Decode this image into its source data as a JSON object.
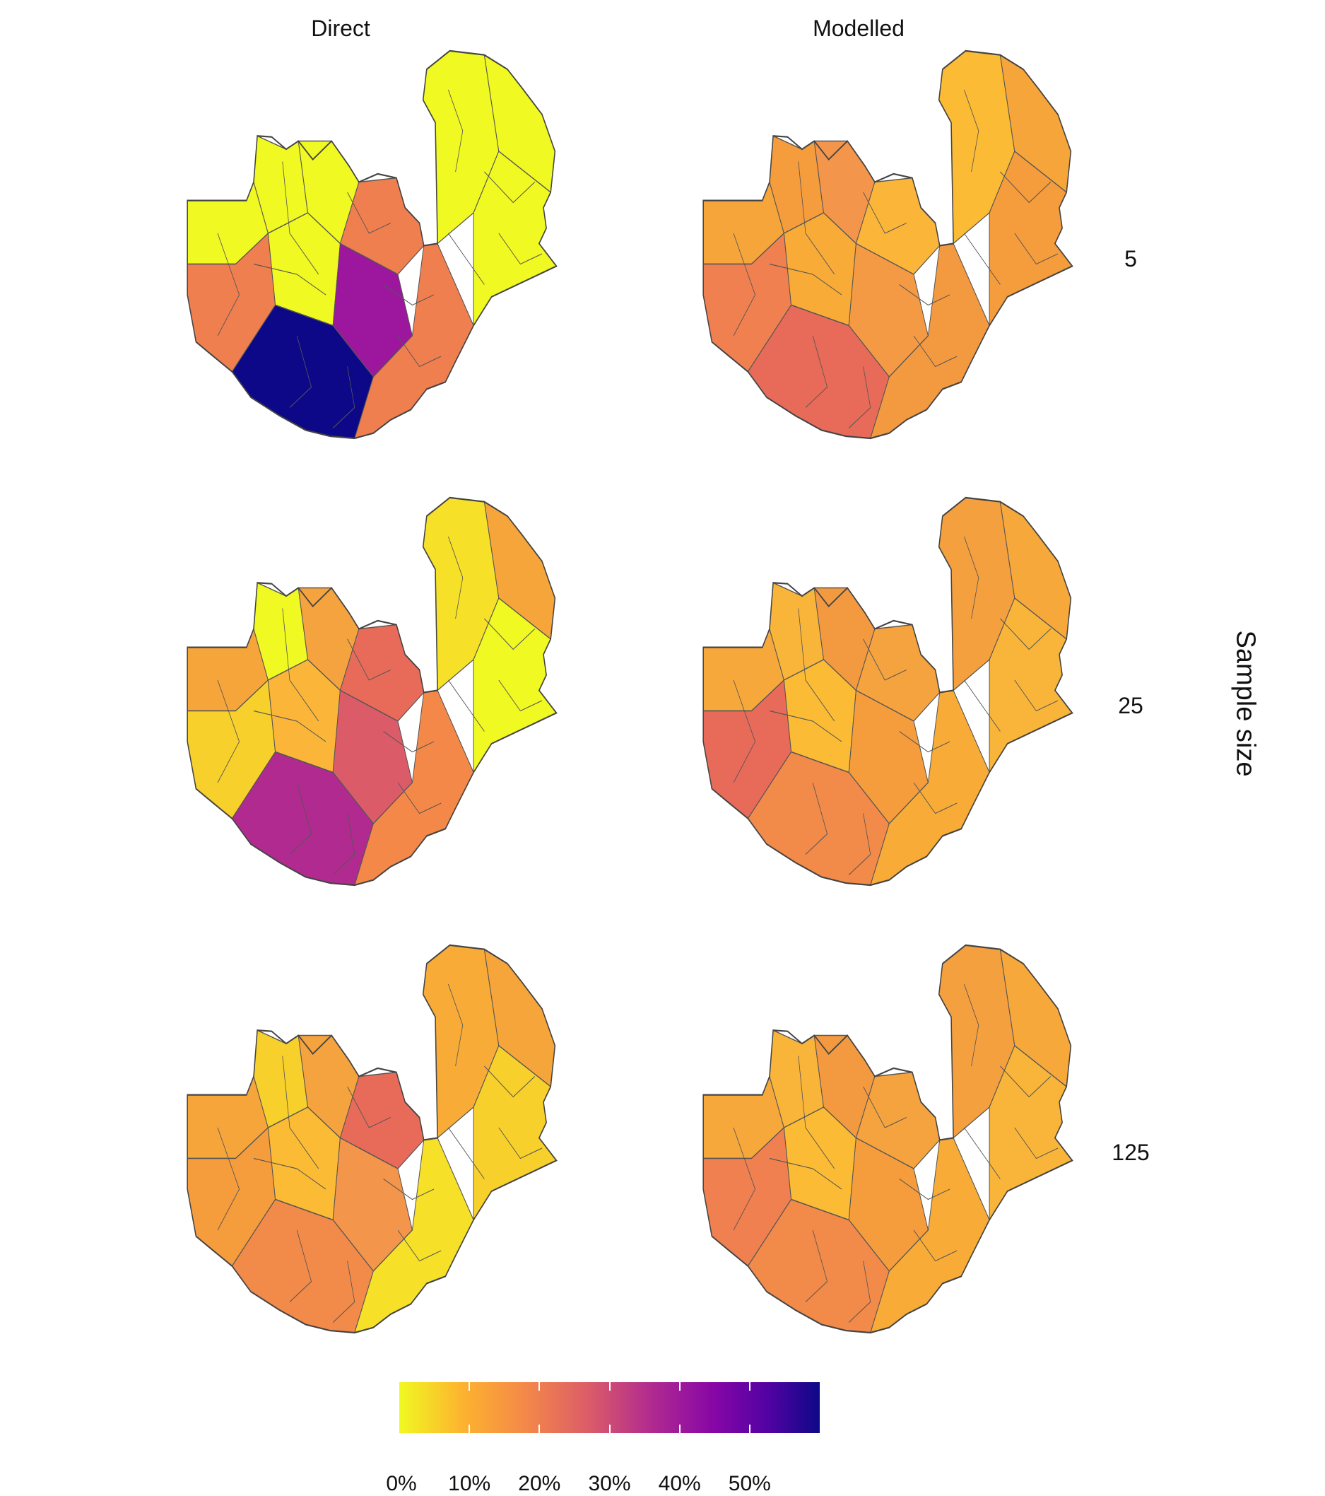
{
  "columns": [
    "Direct",
    "Modelled"
  ],
  "strip_title": "Sample size",
  "rows": [
    "5",
    "25",
    "125"
  ],
  "legend": {
    "labels": [
      "0%",
      "10%",
      "20%",
      "30%",
      "40%",
      "50%"
    ],
    "values": [
      0,
      10,
      20,
      30,
      40,
      50
    ],
    "max": 60,
    "colors": [
      "#f0f921",
      "#fdb32f",
      "#f48849",
      "#db5c68",
      "#b12a90",
      "#8606a6",
      "#0d0887"
    ]
  },
  "panels": [
    {
      "method": "Direct",
      "sample_size": "5",
      "palette": [
        "#f0f921",
        "#f0f921",
        "#f0f921",
        "#f07f50",
        "#f07f50",
        "#f0f921",
        "#9c179e",
        "#0d0887",
        "#f07f50",
        "#f0f921"
      ]
    },
    {
      "method": "Modelled",
      "sample_size": "5",
      "palette": [
        "#f6a53a",
        "#f59c3c",
        "#f3954a",
        "#fbb63a",
        "#f08050",
        "#f8ac37",
        "#f59a44",
        "#e86b5a",
        "#f39a41",
        "#fbbb35"
      ]
    },
    {
      "method": "Direct",
      "sample_size": "25",
      "palette": [
        "#f6a53a",
        "#f0f921",
        "#f5a33e",
        "#e86b5a",
        "#f8d02b",
        "#fbb63a",
        "#db5c68",
        "#b12a90",
        "#f48849",
        "#f6e128"
      ]
    },
    {
      "method": "Modelled",
      "sample_size": "25",
      "palette": [
        "#f7a83b",
        "#f9b53a",
        "#f39a41",
        "#f5a33e",
        "#e86b5a",
        "#fbbb35",
        "#f59c3c",
        "#f28a4a",
        "#f8ac37",
        "#f4a03f"
      ]
    },
    {
      "method": "Direct",
      "sample_size": "125",
      "palette": [
        "#f6a53a",
        "#f8d02b",
        "#f5a33e",
        "#e86b5a",
        "#f59c3c",
        "#fbbb35",
        "#f3954a",
        "#f28a4a",
        "#f6e128",
        "#f8ac37"
      ]
    },
    {
      "method": "Modelled",
      "sample_size": "125",
      "palette": [
        "#f7a83b",
        "#f9b53a",
        "#f39a41",
        "#f5a33e",
        "#f08050",
        "#fbbb35",
        "#f59c3c",
        "#f28a4a",
        "#f8ac37",
        "#f4a03f"
      ]
    }
  ]
}
